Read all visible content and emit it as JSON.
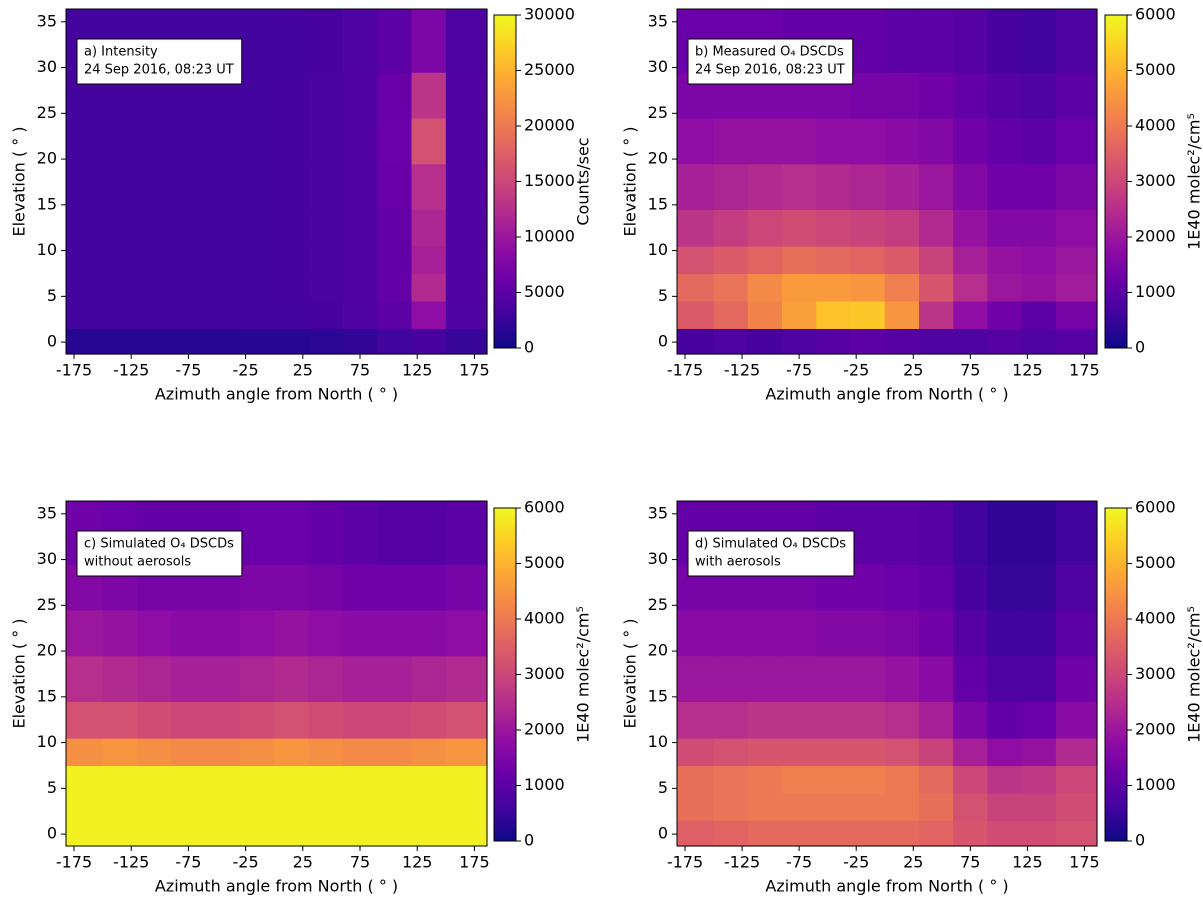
{
  "chart_data": [
    {
      "type": "heatmap",
      "colormap": "plasma",
      "annotation": [
        "a) Intensity",
        "24 Sep 2016, 08:23 UT"
      ],
      "xlabel": "Azimuth angle from North ( ° )",
      "ylabel": "Elevation ( ° )",
      "xlim": [
        -182,
        186
      ],
      "ylim": [
        -1.3,
        36.4
      ],
      "xticks": [
        -175,
        -125,
        -75,
        -25,
        25,
        75,
        125,
        175
      ],
      "yticks": [
        0,
        5,
        10,
        15,
        20,
        25,
        30,
        35
      ],
      "x_edges": [
        -182,
        -150,
        -120,
        -90,
        -60,
        -30,
        0,
        30,
        60,
        90,
        120,
        150,
        186
      ],
      "y_edges": [
        -1.3,
        1.5,
        4.5,
        7.5,
        10.5,
        14.5,
        19.5,
        24.5,
        29.5,
        36.4
      ],
      "z": [
        [
          1500,
          1500,
          1500,
          1500,
          1500,
          1500,
          1500,
          1800,
          2200,
          3000,
          3500,
          2500
        ],
        [
          3200,
          3200,
          3200,
          3200,
          3200,
          3300,
          3300,
          3500,
          4000,
          5000,
          9000,
          4000
        ],
        [
          3300,
          3300,
          3300,
          3300,
          3300,
          3300,
          3400,
          3600,
          4200,
          5500,
          12000,
          4200
        ],
        [
          3300,
          3300,
          3300,
          3300,
          3300,
          3300,
          3400,
          3600,
          4200,
          5500,
          11000,
          4200
        ],
        [
          3300,
          3300,
          3300,
          3300,
          3300,
          3300,
          3400,
          3600,
          4200,
          5500,
          11500,
          4200
        ],
        [
          3300,
          3300,
          3300,
          3300,
          3300,
          3300,
          3400,
          3600,
          4200,
          5800,
          12500,
          4200
        ],
        [
          3300,
          3300,
          3300,
          3300,
          3300,
          3300,
          3400,
          3600,
          4200,
          6000,
          16000,
          4200
        ],
        [
          3300,
          3300,
          3300,
          3300,
          3300,
          3300,
          3400,
          3600,
          4200,
          5800,
          13000,
          4100
        ],
        [
          3200,
          3200,
          3200,
          3200,
          3200,
          3200,
          3300,
          3500,
          4000,
          5000,
          7500,
          3800
        ]
      ],
      "colorbar": {
        "label": "Counts/sec",
        "lim": [
          0,
          30000
        ],
        "ticks": [
          0,
          5000,
          10000,
          15000,
          20000,
          25000,
          30000
        ]
      }
    },
    {
      "type": "heatmap",
      "colormap": "plasma",
      "annotation": [
        "b) Measured O₄ DSCDs",
        "24 Sep 2016, 08:23 UT"
      ],
      "xlabel": "Azimuth angle from North ( ° )",
      "ylabel": "Elevation ( ° )",
      "xlim": [
        -182,
        186
      ],
      "ylim": [
        -1.3,
        36.4
      ],
      "xticks": [
        -175,
        -125,
        -75,
        -25,
        25,
        75,
        125,
        175
      ],
      "yticks": [
        0,
        5,
        10,
        15,
        20,
        25,
        30,
        35
      ],
      "x_edges": [
        -182,
        -150,
        -120,
        -90,
        -60,
        -30,
        0,
        30,
        60,
        90,
        120,
        150,
        186
      ],
      "y_edges": [
        -1.3,
        1.5,
        4.5,
        7.5,
        10.5,
        14.5,
        19.5,
        24.5,
        29.5,
        36.4
      ],
      "z": [
        [
          700,
          800,
          700,
          800,
          900,
          1000,
          900,
          800,
          800,
          900,
          800,
          900
        ],
        [
          3400,
          3700,
          4200,
          4700,
          5200,
          5300,
          4500,
          2600,
          1800,
          1300,
          1000,
          1400
        ],
        [
          3700,
          3900,
          4300,
          4600,
          4600,
          4500,
          4100,
          3300,
          2500,
          2000,
          1900,
          2100
        ],
        [
          3200,
          3400,
          3600,
          3800,
          3700,
          3600,
          3400,
          2900,
          2200,
          1900,
          1800,
          2000
        ],
        [
          2600,
          2800,
          3000,
          3100,
          3000,
          2900,
          2800,
          2400,
          1900,
          1600,
          1600,
          1800
        ],
        [
          2200,
          2300,
          2400,
          2500,
          2400,
          2300,
          2200,
          2000,
          1600,
          1300,
          1300,
          1500
        ],
        [
          1800,
          1900,
          1900,
          1900,
          1800,
          1800,
          1700,
          1600,
          1300,
          1100,
          1000,
          1200
        ],
        [
          1500,
          1500,
          1500,
          1500,
          1500,
          1400,
          1400,
          1300,
          1100,
          900,
          800,
          1000
        ],
        [
          1200,
          1200,
          1200,
          1100,
          1100,
          1100,
          1000,
          1000,
          900,
          700,
          600,
          800
        ]
      ],
      "colorbar": {
        "label": "1E40 molec²/cm⁵",
        "lim": [
          0,
          6000
        ],
        "ticks": [
          0,
          1000,
          2000,
          3000,
          4000,
          5000,
          6000
        ]
      }
    },
    {
      "type": "heatmap",
      "colormap": "plasma",
      "annotation": [
        "c) Simulated O₄ DSCDs",
        "without aerosols"
      ],
      "xlabel": "Azimuth angle from North ( ° )",
      "ylabel": "Elevation ( ° )",
      "xlim": [
        -182,
        186
      ],
      "ylim": [
        -1.3,
        36.4
      ],
      "xticks": [
        -175,
        -125,
        -75,
        -25,
        25,
        75,
        125,
        175
      ],
      "yticks": [
        0,
        5,
        10,
        15,
        20,
        25,
        30,
        35
      ],
      "x_edges": [
        -182,
        -150,
        -120,
        -90,
        -60,
        -30,
        0,
        30,
        60,
        90,
        120,
        150,
        186
      ],
      "y_edges": [
        -1.3,
        1.5,
        4.5,
        7.5,
        10.5,
        14.5,
        19.5,
        24.5,
        29.5,
        36.4
      ],
      "z": [
        [
          5900,
          5900,
          5900,
          5900,
          5900,
          5900,
          5900,
          5900,
          5900,
          5900,
          5900,
          5900
        ],
        [
          5900,
          5900,
          5900,
          5900,
          5900,
          5900,
          5900,
          5900,
          5900,
          5900,
          5900,
          5900
        ],
        [
          5900,
          5900,
          5900,
          5900,
          5900,
          5900,
          5900,
          5900,
          5900,
          5900,
          5900,
          5900
        ],
        [
          4400,
          4500,
          4400,
          4300,
          4300,
          4400,
          4500,
          4400,
          4300,
          4300,
          4400,
          4500
        ],
        [
          3200,
          3200,
          3100,
          3000,
          3000,
          3100,
          3200,
          3100,
          3000,
          3000,
          3100,
          3200
        ],
        [
          2500,
          2400,
          2300,
          2200,
          2200,
          2300,
          2400,
          2300,
          2200,
          2200,
          2300,
          2400
        ],
        [
          2000,
          1900,
          1800,
          1700,
          1700,
          1800,
          1900,
          1800,
          1700,
          1700,
          1700,
          1800
        ],
        [
          1600,
          1500,
          1400,
          1400,
          1400,
          1500,
          1500,
          1400,
          1300,
          1300,
          1300,
          1400
        ],
        [
          1300,
          1200,
          1100,
          1100,
          1100,
          1200,
          1200,
          1100,
          1000,
          900,
          900,
          1000
        ]
      ],
      "colorbar": {
        "label": "1E40 molec²/cm⁵",
        "lim": [
          0,
          6000
        ],
        "ticks": [
          0,
          1000,
          2000,
          3000,
          4000,
          5000,
          6000
        ]
      }
    },
    {
      "type": "heatmap",
      "colormap": "plasma",
      "annotation": [
        "d) Simulated O₄ DSCDs",
        "with aerosols"
      ],
      "xlabel": "Azimuth angle from North ( ° )",
      "ylabel": "Elevation ( ° )",
      "xlim": [
        -182,
        186
      ],
      "ylim": [
        -1.3,
        36.4
      ],
      "xticks": [
        -175,
        -125,
        -75,
        -25,
        25,
        75,
        125,
        175
      ],
      "yticks": [
        0,
        5,
        10,
        15,
        20,
        25,
        30,
        35
      ],
      "x_edges": [
        -182,
        -150,
        -120,
        -90,
        -60,
        -30,
        0,
        30,
        60,
        90,
        120,
        150,
        186
      ],
      "y_edges": [
        -1.3,
        1.5,
        4.5,
        7.5,
        10.5,
        14.5,
        19.5,
        24.5,
        29.5,
        36.4
      ],
      "z": [
        [
          3500,
          3600,
          3700,
          3700,
          3700,
          3700,
          3700,
          3600,
          3300,
          3100,
          3100,
          3200
        ],
        [
          3800,
          3900,
          4000,
          4000,
          4000,
          4000,
          4000,
          3800,
          3200,
          2900,
          2900,
          3100
        ],
        [
          3800,
          3900,
          4000,
          4100,
          4100,
          4100,
          4000,
          3700,
          3000,
          2600,
          2700,
          3000
        ],
        [
          3100,
          3200,
          3300,
          3300,
          3300,
          3300,
          3200,
          2900,
          2200,
          1800,
          1900,
          2400
        ],
        [
          2500,
          2500,
          2600,
          2600,
          2600,
          2600,
          2500,
          2200,
          1500,
          1100,
          1200,
          1700
        ],
        [
          2000,
          2000,
          2000,
          2000,
          2000,
          2000,
          1900,
          1700,
          1100,
          800,
          800,
          1300
        ],
        [
          1700,
          1700,
          1700,
          1700,
          1600,
          1600,
          1500,
          1300,
          900,
          600,
          600,
          1000
        ],
        [
          1400,
          1400,
          1400,
          1400,
          1300,
          1300,
          1200,
          1100,
          700,
          500,
          500,
          800
        ],
        [
          1100,
          1100,
          1100,
          1100,
          1000,
          1000,
          1000,
          900,
          600,
          400,
          400,
          600
        ]
      ],
      "colorbar": {
        "label": "1E40 molec²/cm⁵",
        "lim": [
          0,
          6000
        ],
        "ticks": [
          0,
          1000,
          2000,
          3000,
          4000,
          5000,
          6000
        ]
      }
    }
  ]
}
